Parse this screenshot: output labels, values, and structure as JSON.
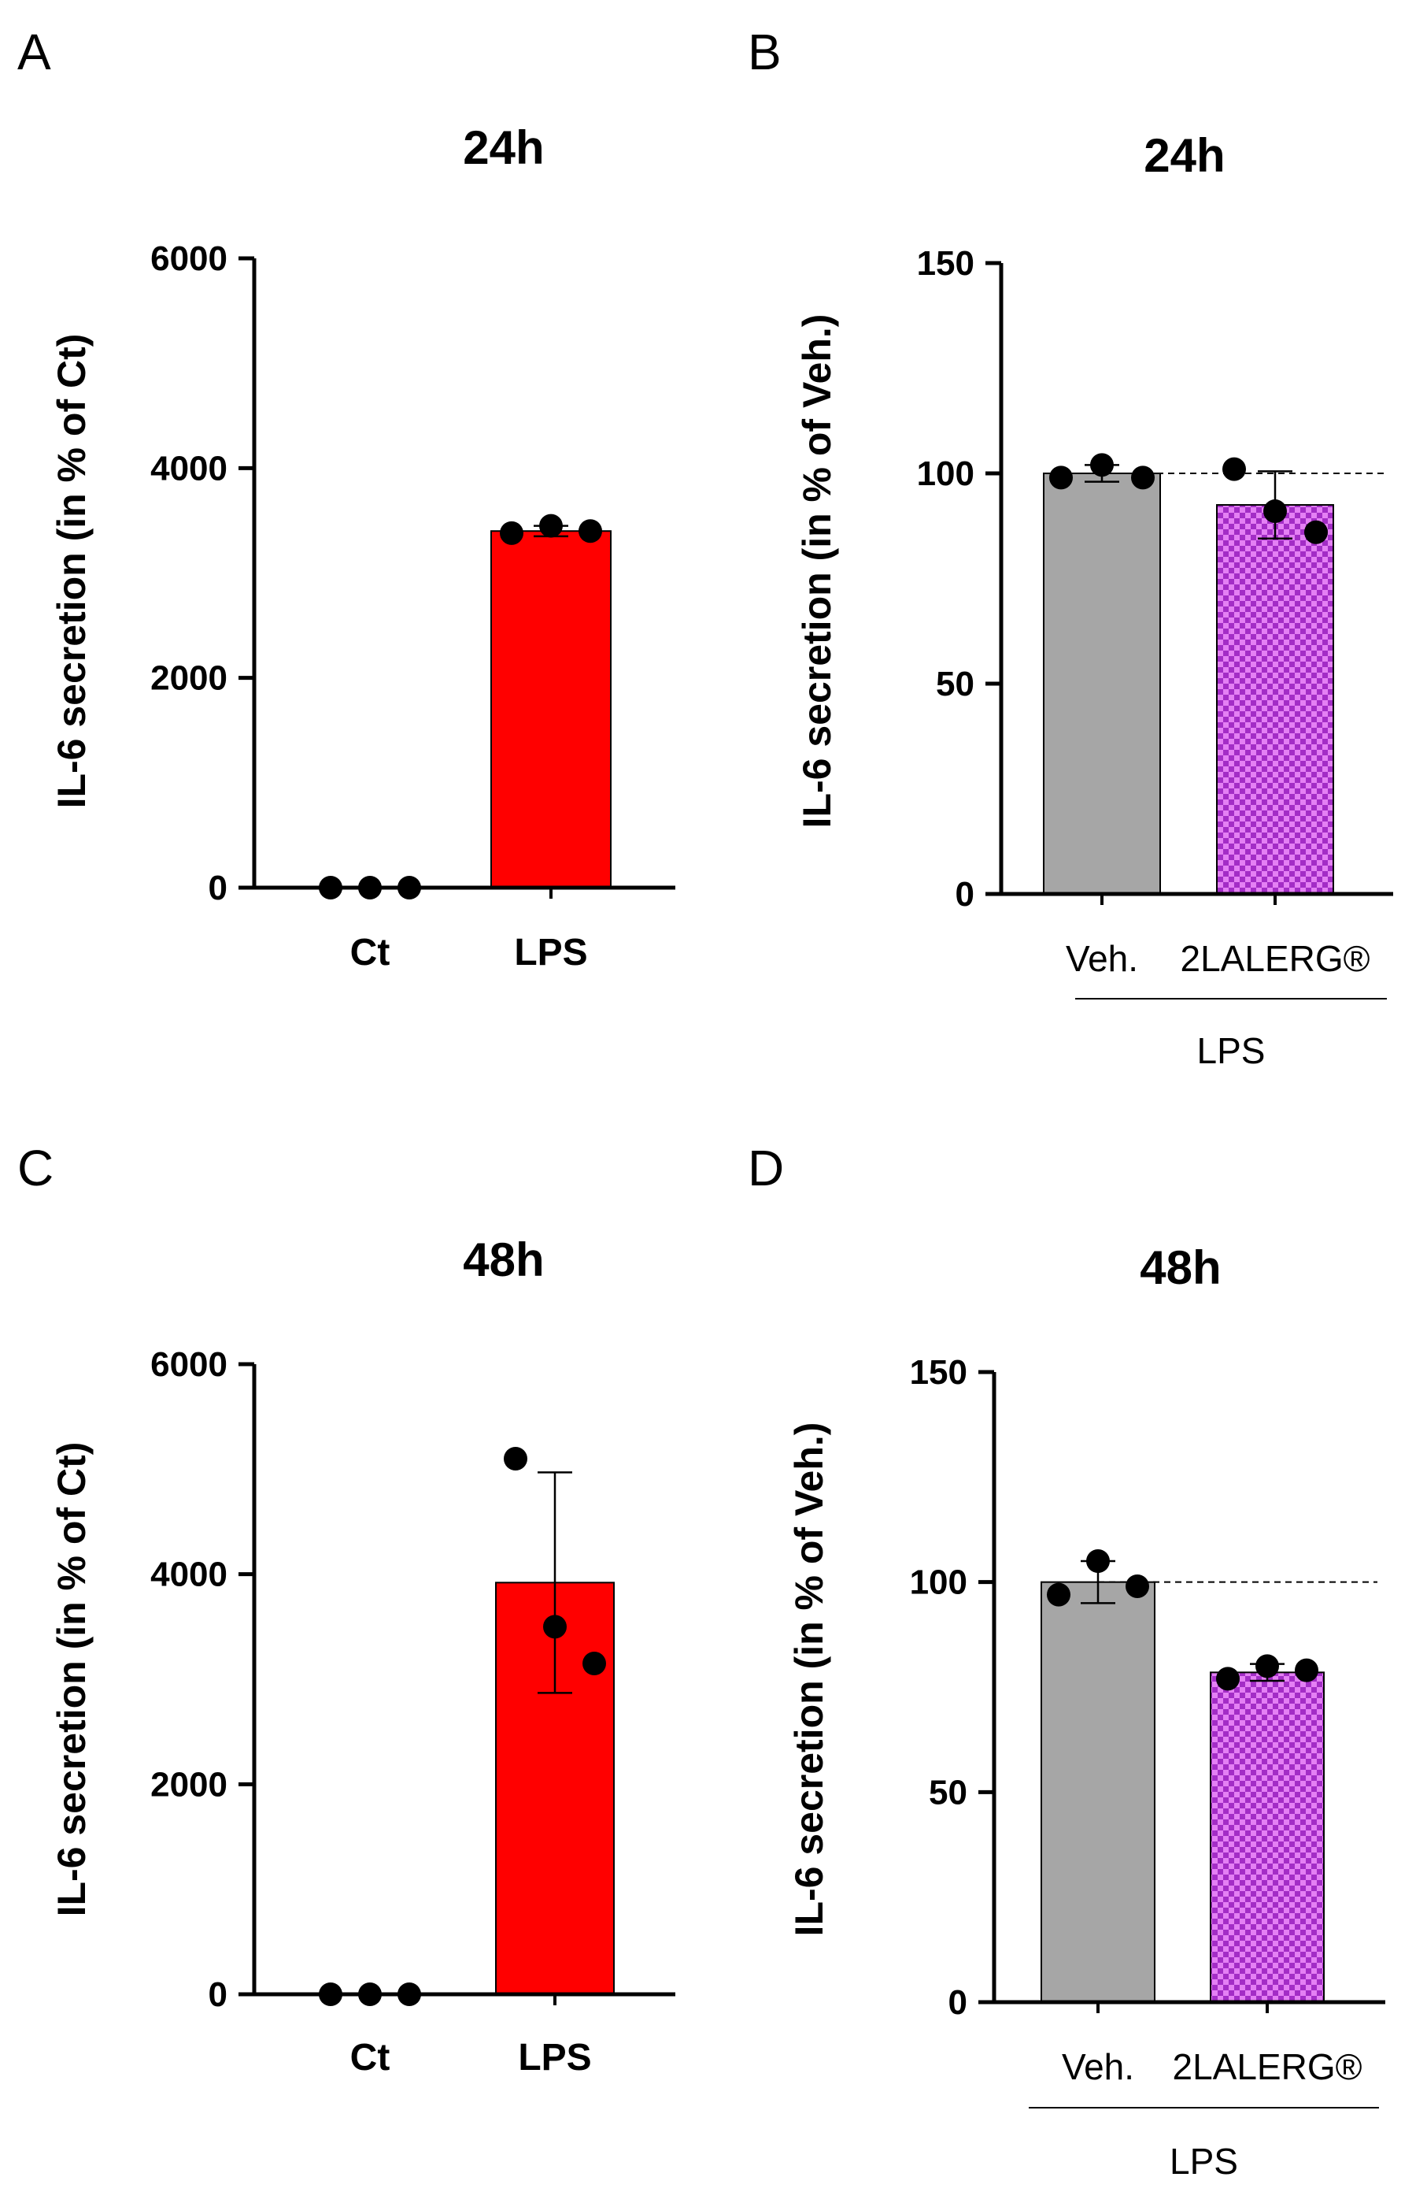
{
  "colors": {
    "red_bar": "#ff0000",
    "gray_bar": "#a6a6a6",
    "purple_light": "#e480f4",
    "purple_dark": "#a32dc6",
    "axis": "#000000",
    "point": "#000000"
  },
  "chart_data": [
    {
      "panel": "A",
      "type": "bar",
      "title": "24h",
      "ylabel": "IL-6 secretion (in % of Ct)",
      "xlabel": "",
      "ylim": [
        0,
        6000
      ],
      "yticks": [
        "0",
        "2000",
        "4000",
        "6000"
      ],
      "categories": [
        "Ct",
        "LPS"
      ],
      "series": [
        {
          "name": "IL-6 secretion",
          "values": [
            0,
            3400
          ],
          "error": [
            0,
            50
          ]
        }
      ],
      "points": [
        [
          0,
          0,
          0
        ],
        [
          3380,
          3450,
          3400
        ]
      ],
      "reference_line": null,
      "group_label": null
    },
    {
      "panel": "B",
      "type": "bar",
      "title": "24h",
      "ylabel": "IL-6 secretion (in % of Veh.)",
      "xlabel": "",
      "ylim": [
        0,
        150
      ],
      "yticks": [
        "0",
        "50",
        "100",
        "150"
      ],
      "categories": [
        "Veh.",
        "2LALERG®"
      ],
      "series": [
        {
          "name": "IL-6 secretion",
          "values": [
            100,
            92.5
          ],
          "error": [
            2,
            8
          ]
        }
      ],
      "points": [
        [
          99,
          102,
          99
        ],
        [
          101,
          91,
          86
        ]
      ],
      "reference_line": 100,
      "group_label": "LPS"
    },
    {
      "panel": "C",
      "type": "bar",
      "title": "48h",
      "ylabel": "IL-6 secretion (in % of Ct)",
      "xlabel": "",
      "ylim": [
        0,
        6000
      ],
      "yticks": [
        "0",
        "2000",
        "4000",
        "6000"
      ],
      "categories": [
        "Ct",
        "LPS"
      ],
      "series": [
        {
          "name": "IL-6 secretion",
          "values": [
            0,
            3920
          ],
          "error": [
            0,
            1050
          ]
        }
      ],
      "points": [
        [
          0,
          0,
          0
        ],
        [
          5100,
          3500,
          3150
        ]
      ],
      "reference_line": null,
      "group_label": null
    },
    {
      "panel": "D",
      "type": "bar",
      "title": "48h",
      "ylabel": "IL-6 secretion (in % of Veh.)",
      "xlabel": "",
      "ylim": [
        0,
        150
      ],
      "yticks": [
        "0",
        "50",
        "100",
        "150"
      ],
      "categories": [
        "Veh.",
        "2LALERG®"
      ],
      "series": [
        {
          "name": "IL-6 secretion",
          "values": [
            100,
            78.5
          ],
          "error": [
            5,
            2
          ]
        }
      ],
      "points": [
        [
          97,
          105,
          99
        ],
        [
          77,
          80,
          79
        ]
      ],
      "reference_line": 100,
      "group_label": "LPS"
    }
  ]
}
